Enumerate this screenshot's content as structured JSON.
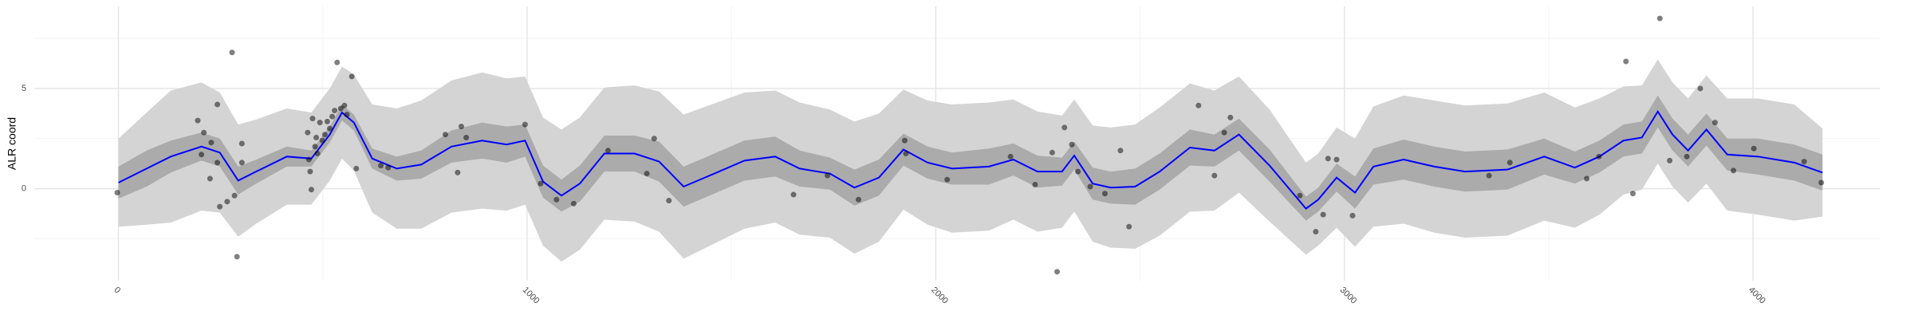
{
  "chart_data": {
    "type": "line",
    "y_label": "ALR coord",
    "x": [
      0,
      69,
      128,
      203,
      248,
      293,
      337,
      412,
      472,
      517,
      547,
      576,
      621,
      681,
      741,
      815,
      890,
      950,
      995,
      1039,
      1084,
      1129,
      1189,
      1263,
      1323,
      1383,
      1458,
      1532,
      1607,
      1667,
      1741,
      1801,
      1861,
      1921,
      1980,
      2040,
      2130,
      2190,
      2249,
      2309,
      2339,
      2384,
      2428,
      2488,
      2548,
      2622,
      2682,
      2742,
      2817,
      2906,
      2936,
      2981,
      3026,
      3071,
      3145,
      3220,
      3295,
      3399,
      3489,
      3564,
      3624,
      3683,
      3728,
      3767,
      3803,
      3841,
      3886,
      3937,
      4012,
      4101,
      4170
    ],
    "values": [
      0.3,
      1.0,
      1.6,
      2.1,
      1.8,
      0.4,
      0.85,
      1.6,
      1.5,
      2.7,
      3.8,
      3.3,
      1.5,
      1.0,
      1.2,
      2.1,
      2.4,
      2.2,
      2.4,
      0.35,
      -0.35,
      0.25,
      1.75,
      1.75,
      1.35,
      0.1,
      0.75,
      1.4,
      1.6,
      1.0,
      0.75,
      0.05,
      0.55,
      1.95,
      1.3,
      1.0,
      1.1,
      1.45,
      0.85,
      0.85,
      1.65,
      0.25,
      0.05,
      0.1,
      0.85,
      2.05,
      1.9,
      2.7,
      1.15,
      -1.0,
      -0.55,
      0.55,
      -0.2,
      1.1,
      1.45,
      1.1,
      0.85,
      0.95,
      1.6,
      1.05,
      1.6,
      2.4,
      2.55,
      3.85,
      2.7,
      1.9,
      2.95,
      1.7,
      1.6,
      1.3,
      0.8
    ],
    "inner_err": [
      0.8,
      0.9,
      0.8,
      0.7,
      0.7,
      0.7,
      0.6,
      0.5,
      0.4,
      0.4,
      0.4,
      0.4,
      0.5,
      0.6,
      0.7,
      0.8,
      0.9,
      0.9,
      0.8,
      0.8,
      0.8,
      0.9,
      0.9,
      0.9,
      1.0,
      1.0,
      1.0,
      1.0,
      1.0,
      0.9,
      0.8,
      0.9,
      0.9,
      0.8,
      0.8,
      0.8,
      0.9,
      0.8,
      0.8,
      0.7,
      0.7,
      0.8,
      0.8,
      0.9,
      0.9,
      0.9,
      0.8,
      0.8,
      0.8,
      0.6,
      0.6,
      0.7,
      0.8,
      0.9,
      1.0,
      1.0,
      1.0,
      1.0,
      0.9,
      0.8,
      0.8,
      0.8,
      0.8,
      0.8,
      0.8,
      0.8,
      0.8,
      0.8,
      0.9,
      0.9,
      0.9
    ],
    "outer_err": [
      2.2,
      2.8,
      3.3,
      3.2,
      3.0,
      2.8,
      2.6,
      2.4,
      2.3,
      2.3,
      2.3,
      2.4,
      2.7,
      3.0,
      3.2,
      3.3,
      3.4,
      3.3,
      3.2,
      3.2,
      3.3,
      3.3,
      3.3,
      3.4,
      3.5,
      3.6,
      3.5,
      3.4,
      3.3,
      3.3,
      3.2,
      3.3,
      3.2,
      3.0,
      3.1,
      3.2,
      3.2,
      3.0,
      3.0,
      2.8,
      2.8,
      2.9,
      3.0,
      3.1,
      3.2,
      3.2,
      3.0,
      2.9,
      2.8,
      2.3,
      2.3,
      2.5,
      2.7,
      3.0,
      3.2,
      3.3,
      3.3,
      3.3,
      3.2,
      3.0,
      2.9,
      2.7,
      2.6,
      2.6,
      2.6,
      2.6,
      2.7,
      2.8,
      2.9,
      2.9,
      2.2
    ],
    "color": "#0000ff",
    "inner_color": "#ababab",
    "outer_color": "#d4d4d4",
    "scatter_x": [
      -3,
      194,
      203,
      209,
      227,
      242,
      224,
      242,
      248,
      266,
      278,
      284,
      290,
      302,
      302,
      463,
      466,
      469,
      472,
      475,
      481,
      484,
      487,
      493,
      499,
      505,
      511,
      517,
      523,
      529,
      535,
      544,
      553,
      559,
      571,
      582,
      642,
      660,
      800,
      839,
      851,
      830,
      995,
      1033,
      1072,
      1114,
      1198,
      1293,
      1311,
      1347,
      1652,
      1735,
      1811,
      1924,
      1927,
      2028,
      2183,
      2243,
      2285,
      2297,
      2315,
      2333,
      2348,
      2378,
      2414,
      2452,
      2473,
      2643,
      2682,
      2706,
      2721,
      2891,
      2930,
      2948,
      2960,
      2981,
      3020,
      3354,
      3405,
      3593,
      3623,
      3689,
      3706,
      3772,
      3796,
      3838,
      3871,
      3907,
      3952,
      4002,
      4125,
      4167
    ],
    "scatter_y": [
      -0.2,
      3.4,
      1.7,
      2.8,
      2.3,
      1.3,
      0.5,
      4.2,
      -0.9,
      -0.65,
      6.8,
      -0.35,
      -3.4,
      1.3,
      2.25,
      2.8,
      1.45,
      0.85,
      -0.05,
      3.5,
      2.1,
      2.55,
      1.75,
      3.3,
      2.4,
      2.7,
      3.35,
      3.0,
      3.6,
      3.9,
      6.3,
      4.0,
      4.15,
      3.7,
      5.6,
      1.0,
      1.15,
      1.05,
      2.7,
      3.1,
      2.55,
      0.8,
      3.2,
      0.25,
      -0.55,
      -0.75,
      1.9,
      0.75,
      2.5,
      -0.6,
      -0.3,
      0.65,
      -0.55,
      2.4,
      1.75,
      0.45,
      1.6,
      0.2,
      1.8,
      -4.15,
      3.05,
      2.2,
      0.85,
      0.1,
      -0.25,
      1.9,
      -1.9,
      4.15,
      0.65,
      2.8,
      3.55,
      -0.35,
      -2.15,
      -1.3,
      1.5,
      1.45,
      -1.35,
      0.65,
      1.3,
      0.5,
      1.6,
      6.35,
      -0.25,
      8.5,
      1.4,
      1.6,
      5.0,
      3.3,
      0.9,
      2.0,
      1.35,
      0.3
    ],
    "point_color": "#000000",
    "xlim": [
      -206,
      4310
    ],
    "ylim": [
      -4.6,
      9.1
    ],
    "xticks": [
      0,
      1000,
      2000,
      3000,
      4000
    ],
    "yticks": [
      0,
      5
    ],
    "minor_xticks": [
      500,
      1500,
      2500,
      3500
    ],
    "minor_yticks": [
      -2.5,
      2.5,
      7.5
    ],
    "grid": true
  }
}
